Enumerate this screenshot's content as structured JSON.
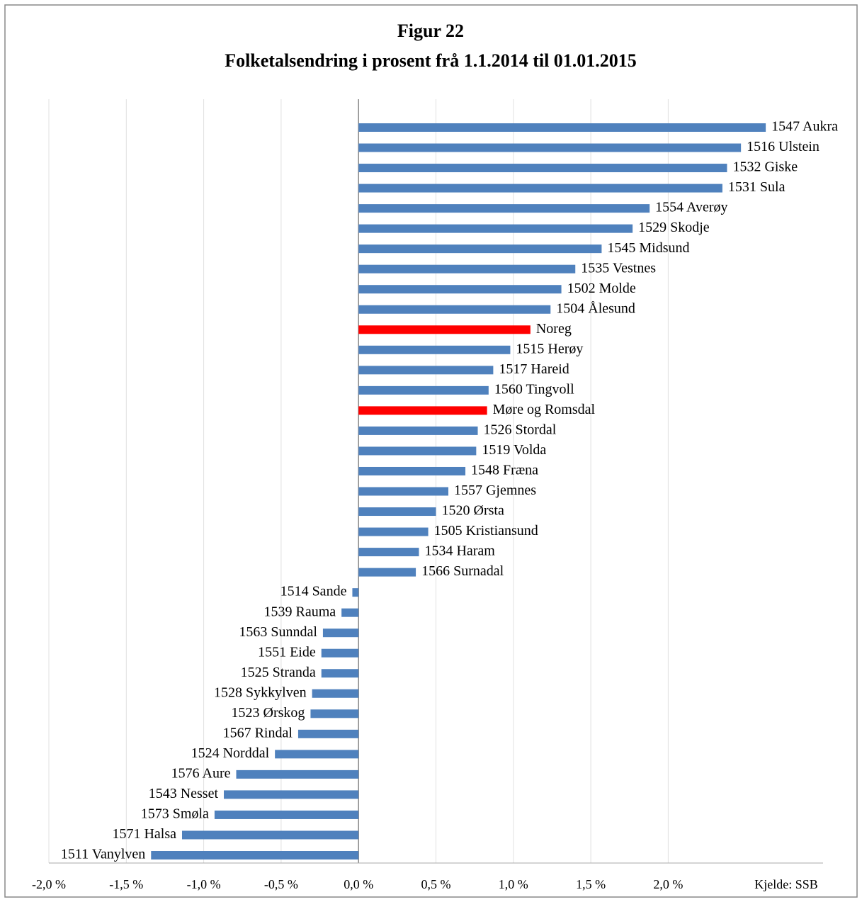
{
  "chart_data": {
    "type": "barh",
    "title": "Figur 22",
    "subtitle": "Folketalsendring i prosent frå 1.1.2014 til 01.01.2015",
    "note": "Kjelde: SSB",
    "categories": [
      "1547 Aukra",
      "1516 Ulstein",
      "1532 Giske",
      "1531 Sula",
      "1554 Averøy",
      "1529 Skodje",
      "1545 Midsund",
      "1535 Vestnes",
      "1502 Molde",
      "1504 Ålesund",
      "Noreg",
      "1515 Herøy",
      "1517 Hareid",
      "1560 Tingvoll",
      "Møre og Romsdal",
      "1526 Stordal",
      "1519 Volda",
      "1548 Fræna",
      "1557 Gjemnes",
      "1520 Ørsta",
      "1505 Kristiansund",
      "1534 Haram",
      "1566 Surnadal",
      "1514 Sande",
      "1539 Rauma",
      "1563 Sunndal",
      "1551 Eide",
      "1525 Stranda",
      "1528 Sykkylven",
      "1523 Ørskog",
      "1567 Rindal",
      "1524 Norddal",
      "1576 Aure",
      "1543 Nesset",
      "1573 Smøla",
      "1571 Halsa",
      "1511 Vanylven"
    ],
    "values": [
      2.63,
      2.47,
      2.38,
      2.35,
      1.88,
      1.77,
      1.57,
      1.4,
      1.31,
      1.24,
      1.11,
      0.98,
      0.87,
      0.84,
      0.83,
      0.77,
      0.76,
      0.69,
      0.58,
      0.5,
      0.45,
      0.39,
      0.37,
      -0.04,
      -0.11,
      -0.23,
      -0.24,
      -0.24,
      -0.3,
      -0.31,
      -0.39,
      -0.54,
      -0.79,
      -0.87,
      -0.93,
      -1.14,
      -1.34
    ],
    "colors": [
      "#4f81bd",
      "#4f81bd",
      "#4f81bd",
      "#4f81bd",
      "#4f81bd",
      "#4f81bd",
      "#4f81bd",
      "#4f81bd",
      "#4f81bd",
      "#4f81bd",
      "#ff0000",
      "#4f81bd",
      "#4f81bd",
      "#4f81bd",
      "#ff0000",
      "#4f81bd",
      "#4f81bd",
      "#4f81bd",
      "#4f81bd",
      "#4f81bd",
      "#4f81bd",
      "#4f81bd",
      "#4f81bd",
      "#4f81bd",
      "#4f81bd",
      "#4f81bd",
      "#4f81bd",
      "#4f81bd",
      "#4f81bd",
      "#4f81bd",
      "#4f81bd",
      "#4f81bd",
      "#4f81bd",
      "#4f81bd",
      "#4f81bd",
      "#4f81bd",
      "#4f81bd"
    ],
    "xlim": [
      -2.0,
      3.0
    ],
    "xticks": [
      {
        "value": -2.0,
        "label": "-2,0 %"
      },
      {
        "value": -1.5,
        "label": "-1,5 %"
      },
      {
        "value": -1.0,
        "label": "-1,0 %"
      },
      {
        "value": -0.5,
        "label": "-0,5 %"
      },
      {
        "value": 0.0,
        "label": "0,0 %"
      },
      {
        "value": 0.5,
        "label": "0,5 %"
      },
      {
        "value": 1.0,
        "label": "1,0 %"
      },
      {
        "value": 1.5,
        "label": "1,5 %"
      },
      {
        "value": 2.0,
        "label": "2,0 %"
      }
    ],
    "grid": true
  }
}
